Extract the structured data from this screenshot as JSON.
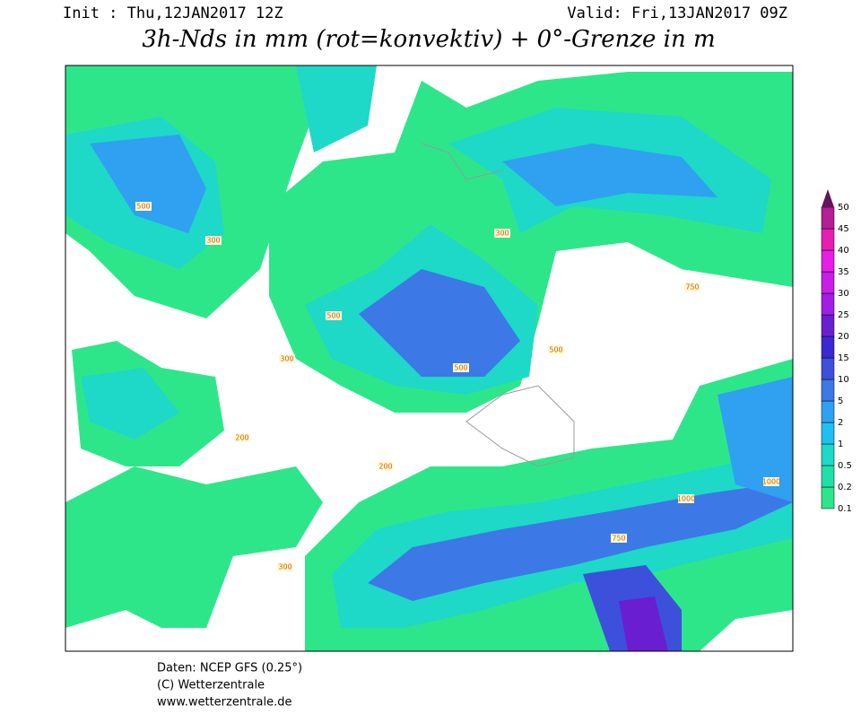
{
  "header": {
    "init": "Init : Thu,12JAN2017 12Z",
    "valid": "Valid: Fri,13JAN2017 09Z",
    "title": "3h-Nds in mm (rot=konvektiv) + 0°-Grenze in m"
  },
  "legend": {
    "levels": [
      0.1,
      0.2,
      0.5,
      1,
      2,
      5,
      10,
      15,
      20,
      25,
      30,
      35,
      40,
      45,
      50
    ],
    "colors": [
      "#2ee68a",
      "#20e0a8",
      "#1ed8c8",
      "#1ec0f0",
      "#30a0f0",
      "#3c78e6",
      "#3c50dc",
      "#3c28d2",
      "#6a1ed2",
      "#a01ee6",
      "#c81ee6",
      "#e61ee6",
      "#e61eb4",
      "#b41e96",
      "#64145a"
    ]
  },
  "isolines": [
    "300",
    "500",
    "200",
    "300",
    "500",
    "500",
    "750",
    "1000",
    "300",
    "1000",
    "750",
    "300",
    "500",
    "200"
  ],
  "footer": {
    "source": "Daten: NCEP GFS (0.25°)",
    "copyright": "(C) Wetterzentrale",
    "website": "www.wetterzentrale.de"
  }
}
